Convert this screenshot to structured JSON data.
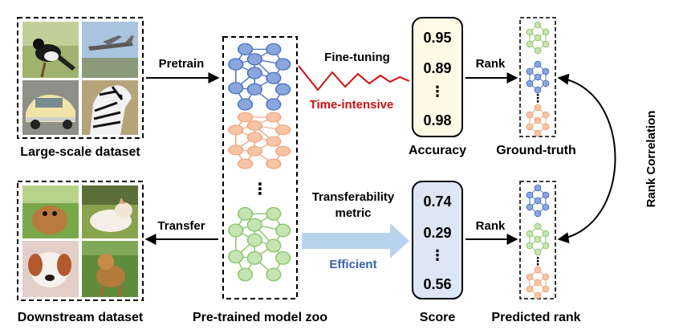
{
  "datasets": {
    "large_scale": {
      "caption": "Large-scale dataset",
      "images": [
        "magpie-bird",
        "propeller-airplane",
        "vintage-car",
        "zebra"
      ]
    },
    "downstream": {
      "caption": "Downstream dataset",
      "images": [
        "shar-pei-puppy",
        "akita-dog",
        "puppy-on-blanket",
        "dog-on-grass"
      ]
    }
  },
  "model_zoo": {
    "caption": "Pre-trained model zoo",
    "ellipsis": "⋮"
  },
  "arrows": {
    "pretrain": "Pretrain",
    "transfer": "Transfer",
    "fine_tuning": "Fine-tuning",
    "time_intensive": "Time-intensive",
    "transferability_line1": "Transferability",
    "transferability_line2": "metric",
    "efficient": "Efficient",
    "rank_top": "Rank",
    "rank_bottom": "Rank",
    "rank_correlation": "Rank Correlation"
  },
  "accuracy": {
    "caption": "Accuracy",
    "values": [
      "0.95",
      "0.89",
      "⋮",
      "0.98"
    ]
  },
  "score": {
    "caption": "Score",
    "values": [
      "0.74",
      "0.29",
      "⋮",
      "0.56"
    ]
  },
  "ground_truth": {
    "caption": "Ground-truth"
  },
  "predicted_rank": {
    "caption": "Predicted rank"
  },
  "colors": {
    "blue": "#4a72c4",
    "blue_fill": "#8aa6dc",
    "orange": "#f0a27a",
    "orange_fill": "#f8c4a6",
    "green": "#8cc66e",
    "green_fill": "#c6e4b2",
    "red": "#d01010",
    "efficient_blue": "#3560b0",
    "accuracy_box": "#fdfbe6",
    "score_box": "#dde6f4",
    "arrow_fill": "#b9d3ee"
  }
}
